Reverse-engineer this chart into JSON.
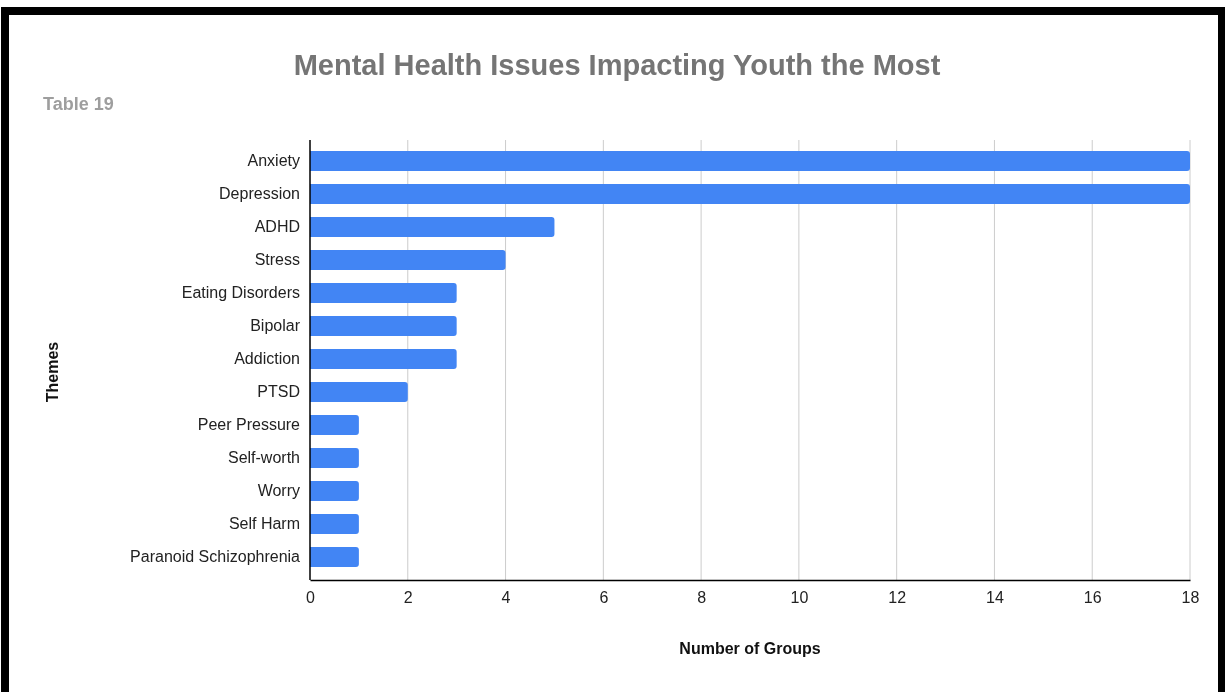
{
  "chart_data": {
    "type": "bar",
    "orientation": "horizontal",
    "title": "Mental Health Issues Impacting Youth the Most",
    "subtitle": "Table 19",
    "xlabel": "Number of Groups",
    "ylabel": "Themes",
    "categories": [
      "Anxiety",
      "Depression",
      "ADHD",
      "Stress",
      "Eating Disorders",
      "Bipolar",
      "Addiction",
      "PTSD",
      "Peer Pressure",
      "Self-worth",
      "Worry",
      "Self Harm",
      "Paranoid Schizophrenia"
    ],
    "values": [
      18,
      18,
      5,
      4,
      3,
      3,
      3,
      2,
      1,
      1,
      1,
      1,
      1
    ],
    "color": "#4285f4",
    "xlim": [
      0,
      18
    ],
    "xticks": [
      0,
      2,
      4,
      6,
      8,
      10,
      12,
      14,
      16,
      18
    ],
    "grid": "x"
  }
}
